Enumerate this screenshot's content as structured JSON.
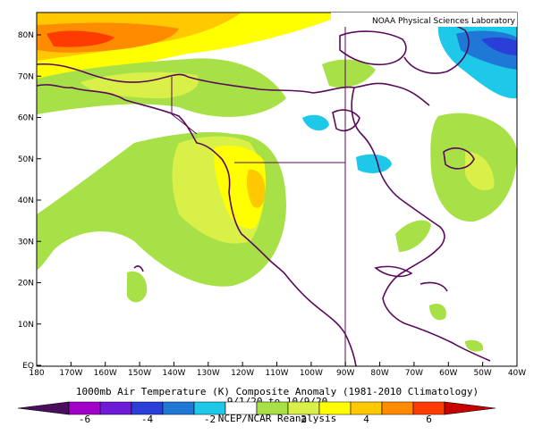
{
  "credit": "NOAA Physical Sciences Laboratory",
  "y_ticks": [
    "80N",
    "70N",
    "60N",
    "50N",
    "40N",
    "30N",
    "20N",
    "10N",
    "EQ"
  ],
  "x_ticks": [
    "180",
    "170W",
    "160W",
    "150W",
    "140W",
    "130W",
    "120W",
    "110W",
    "100W",
    "90W",
    "80W",
    "70W",
    "60W",
    "50W",
    "40W"
  ],
  "title": "1000mb Air Temperature (K) Composite Anomaly (1981-2010 Climatology)",
  "date_range": "9/1/20 to 10/9/20",
  "source": "NCEP/NCAR Reanalysis",
  "colorbar": {
    "labels": [
      "-6",
      "-4",
      "-2",
      "2",
      "4",
      "6"
    ],
    "colors": [
      "#4a0f5c",
      "#a100c8",
      "#6d1bd6",
      "#2a3fd8",
      "#1f78d6",
      "#1ec8e8",
      "#ffffff",
      "#a8e048",
      "#d8f048",
      "#ffff00",
      "#ffc800",
      "#ff8c00",
      "#ff3c00",
      "#c80000"
    ]
  },
  "colors": {
    "land_outline": "#5a0a5a",
    "frame": "#000000"
  }
}
